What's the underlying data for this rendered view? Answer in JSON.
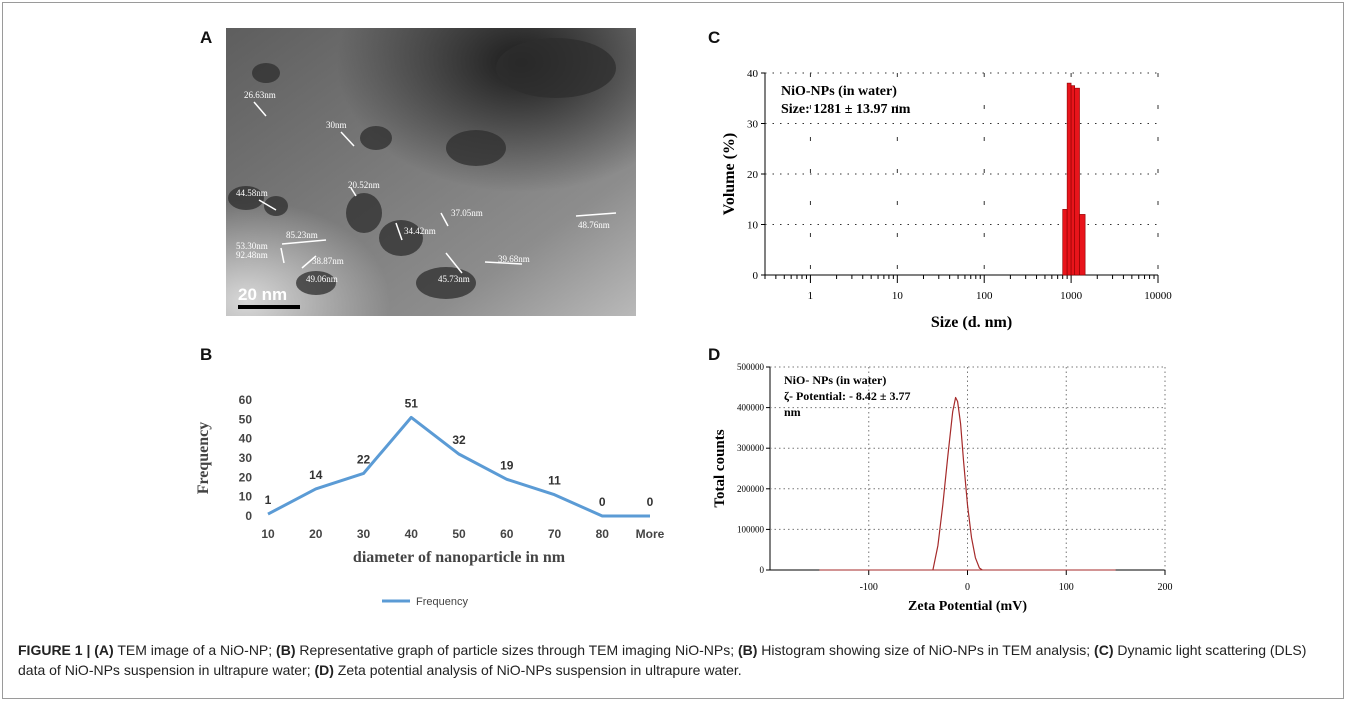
{
  "panels": {
    "a": "A",
    "b": "B",
    "c": "C",
    "d": "D"
  },
  "tem": {
    "scale_bar": "20 nm",
    "measurements": [
      "26.63nm",
      "30nm",
      "20.52nm",
      "44.58nm",
      "37.05nm",
      "34.42nm",
      "48.76nm",
      "85.23nm",
      "53.30nm",
      "92.48nm",
      "38.87nm",
      "49.06nm",
      "45.73nm",
      "39.68nm"
    ]
  },
  "chart_data": [
    {
      "id": "B",
      "type": "line",
      "categories": [
        "10",
        "20",
        "30",
        "40",
        "50",
        "60",
        "70",
        "80",
        "More"
      ],
      "series": [
        {
          "name": "Frequency",
          "values": [
            1,
            14,
            22,
            51,
            32,
            19,
            11,
            0,
            0
          ],
          "color": "#5b9bd5"
        }
      ],
      "data_labels": [
        "1",
        "14",
        "22",
        "51",
        "32",
        "19",
        "11",
        "0",
        "0"
      ],
      "xlabel": "diameter of nanoparticle in nm",
      "ylabel": "Frequency",
      "yticks": [
        "0",
        "10",
        "20",
        "30",
        "40",
        "50",
        "60"
      ],
      "ylim": [
        0,
        60
      ],
      "legend": "bottom"
    },
    {
      "id": "C",
      "type": "bar",
      "xscale": "log",
      "xlim": [
        0.3,
        10000
      ],
      "ylim": [
        0,
        40
      ],
      "xticks": [
        "1",
        "10",
        "100",
        "1000",
        "10000"
      ],
      "yticks": [
        "0",
        "10",
        "20",
        "30",
        "40"
      ],
      "bars": [
        {
          "x0": 800,
          "x1": 900,
          "y": 13
        },
        {
          "x0": 900,
          "x1": 1000,
          "y": 38
        },
        {
          "x0": 1000,
          "x1": 1100,
          "y": 37.5
        },
        {
          "x0": 1100,
          "x1": 1250,
          "y": 37
        },
        {
          "x0": 1250,
          "x1": 1450,
          "y": 12
        }
      ],
      "bar_color": "#e8141b",
      "annotation": [
        "NiO-NPs (in water)",
        "Size: 1281 ± 13.97 nm"
      ],
      "xlabel": "Size (d. nm)",
      "ylabel": "Volume (%)",
      "grid": true
    },
    {
      "id": "D",
      "type": "line",
      "xlim": [
        -200,
        200
      ],
      "ylim": [
        0,
        500000
      ],
      "xticks": [
        "-100",
        "0",
        "100",
        "200"
      ],
      "yticks": [
        "0",
        "100000",
        "200000",
        "300000",
        "400000",
        "500000"
      ],
      "series": [
        {
          "x": [
            -35,
            -30,
            -25,
            -20,
            -15,
            -12,
            -10,
            -7,
            -4,
            0,
            4,
            8,
            12,
            15
          ],
          "y": [
            0,
            60000,
            160000,
            280000,
            390000,
            425000,
            415000,
            360000,
            270000,
            160000,
            80000,
            30000,
            5000,
            0
          ],
          "color": "#a52a2a"
        }
      ],
      "annotation": [
        "NiO- NPs (in water)",
        "ζ- Potential: - 8.42 ± 3.77",
        "nm"
      ],
      "xlabel": "Zeta Potential (mV)",
      "ylabel": "Total counts",
      "grid": true
    }
  ],
  "caption": {
    "lead": "FIGURE 1 | ",
    "a_tag": "(A)",
    "a_text": " TEM image of a NiO-NP; ",
    "b_tag": "(B)",
    "b_text": " Representative graph of particle sizes through TEM imaging NiO-NPs; ",
    "b2_tag": "(B)",
    "b2_text": " Histogram showing size of NiO-NPs in TEM analysis; ",
    "c_tag": "(C)",
    "c_text": " Dynamic light scattering (DLS) data of NiO-NPs suspension in ultrapure water; ",
    "d_tag": "(D)",
    "d_text": " Zeta potential analysis of NiO-NPs suspension in ultrapure water."
  }
}
